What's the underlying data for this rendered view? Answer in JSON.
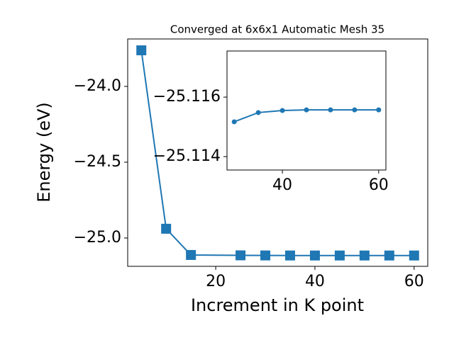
{
  "chart_data": [
    {
      "type": "line",
      "title": "Converged at 6x6x1 Automatic Mesh 35",
      "xlabel": "Increment in K point",
      "ylabel": "Energy (eV)",
      "x": [
        5,
        10,
        15,
        25,
        30,
        35,
        40,
        45,
        50,
        55,
        60
      ],
      "series": [
        {
          "color": "#1f77b4",
          "marker": "square",
          "values": [
            -23.762,
            -24.939,
            -25.112,
            -25.1145,
            -25.11517,
            -25.11548,
            -25.11555,
            -25.11557,
            -25.11557,
            -25.11557,
            -25.11557
          ]
        }
      ],
      "xlim": [
        2.25,
        62.75
      ],
      "xticks": [
        20,
        40,
        60
      ],
      "ylim": [
        -25.187,
        -23.687
      ],
      "yticks": [
        {
          "value": -24.0,
          "label": "−24.0"
        },
        {
          "value": -24.5,
          "label": "−24.5"
        },
        {
          "value": -25.0,
          "label": "−25.0"
        }
      ]
    },
    {
      "type": "line",
      "x": [
        30,
        35,
        40,
        45,
        50,
        55,
        60
      ],
      "series": [
        {
          "color": "#1f77b4",
          "marker": "circle",
          "values": [
            -25.11517,
            -25.11548,
            -25.11555,
            -25.11557,
            -25.11557,
            -25.11557,
            -25.11557
          ]
        }
      ],
      "xlim": [
        28.5,
        61.5
      ],
      "xticks": [
        40,
        60
      ],
      "ylim": [
        -25.11355,
        -25.11755
      ],
      "yticks": [
        {
          "value": -25.116,
          "label": "−25.116"
        },
        {
          "value": -25.114,
          "label": "−25.114"
        }
      ]
    }
  ]
}
